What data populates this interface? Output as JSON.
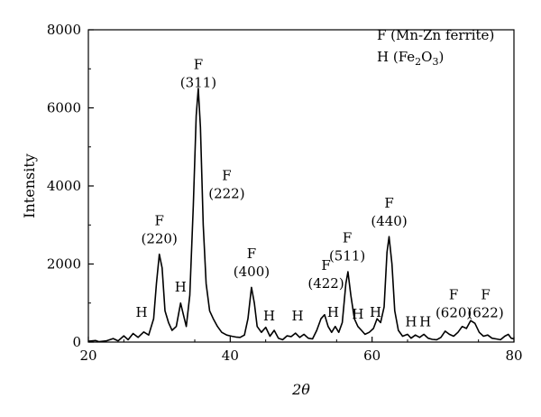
{
  "chart_data": {
    "type": "line",
    "title": "",
    "xlabel": "2θ",
    "ylabel": "Intensity",
    "xlim": [
      20,
      80
    ],
    "ylim": [
      0,
      8000
    ],
    "x_ticks": [
      "20",
      "40",
      "60",
      "80"
    ],
    "x_tick_values": [
      20,
      40,
      60,
      80
    ],
    "y_ticks": [
      "0",
      "2000",
      "4000",
      "6000",
      "8000"
    ],
    "y_tick_values": [
      0,
      2000,
      4000,
      6000,
      8000
    ],
    "grid": false,
    "legend_position": "top-right",
    "legend": {
      "line1": "F (Mn-Zn ferrite)",
      "line2_prefix": "H (Fe",
      "line2_sub1": "2",
      "line2_mid": "O",
      "line2_sub2": "3",
      "line2_suffix": ")"
    },
    "series": [
      {
        "color": "#000000",
        "points": [
          [
            20.0,
            20
          ],
          [
            21.0,
            40
          ],
          [
            21.5,
            10
          ],
          [
            22.5,
            30
          ],
          [
            23.5,
            90
          ],
          [
            24.2,
            30
          ],
          [
            25.0,
            160
          ],
          [
            25.6,
            60
          ],
          [
            26.3,
            220
          ],
          [
            27.0,
            120
          ],
          [
            27.8,
            260
          ],
          [
            28.5,
            180
          ],
          [
            29.2,
            600
          ],
          [
            29.6,
            1500
          ],
          [
            30.0,
            2250
          ],
          [
            30.4,
            1900
          ],
          [
            30.8,
            800
          ],
          [
            31.3,
            500
          ],
          [
            31.8,
            300
          ],
          [
            32.4,
            400
          ],
          [
            33.0,
            1000
          ],
          [
            33.4,
            700
          ],
          [
            33.8,
            400
          ],
          [
            34.3,
            1200
          ],
          [
            34.8,
            3500
          ],
          [
            35.2,
            5800
          ],
          [
            35.5,
            6500
          ],
          [
            35.8,
            5500
          ],
          [
            36.2,
            3000
          ],
          [
            36.6,
            1500
          ],
          [
            37.1,
            800
          ],
          [
            37.6,
            600
          ],
          [
            38.2,
            400
          ],
          [
            38.8,
            250
          ],
          [
            39.5,
            180
          ],
          [
            40.2,
            150
          ],
          [
            40.8,
            130
          ],
          [
            41.4,
            120
          ],
          [
            42.0,
            180
          ],
          [
            42.5,
            600
          ],
          [
            43.0,
            1400
          ],
          [
            43.4,
            1000
          ],
          [
            43.8,
            400
          ],
          [
            44.4,
            250
          ],
          [
            45.0,
            380
          ],
          [
            45.6,
            150
          ],
          [
            46.2,
            300
          ],
          [
            46.8,
            100
          ],
          [
            47.4,
            60
          ],
          [
            48.0,
            160
          ],
          [
            48.6,
            140
          ],
          [
            49.2,
            230
          ],
          [
            49.8,
            120
          ],
          [
            50.4,
            200
          ],
          [
            51.0,
            100
          ],
          [
            51.6,
            80
          ],
          [
            52.2,
            300
          ],
          [
            52.8,
            600
          ],
          [
            53.3,
            700
          ],
          [
            53.8,
            400
          ],
          [
            54.3,
            250
          ],
          [
            54.8,
            400
          ],
          [
            55.3,
            250
          ],
          [
            55.8,
            500
          ],
          [
            56.3,
            1500
          ],
          [
            56.6,
            1800
          ],
          [
            57.0,
            1200
          ],
          [
            57.5,
            600
          ],
          [
            58.0,
            400
          ],
          [
            58.5,
            300
          ],
          [
            59.0,
            200
          ],
          [
            59.6,
            250
          ],
          [
            60.2,
            350
          ],
          [
            60.7,
            600
          ],
          [
            61.2,
            500
          ],
          [
            61.7,
            900
          ],
          [
            62.1,
            2300
          ],
          [
            62.4,
            2700
          ],
          [
            62.8,
            2000
          ],
          [
            63.2,
            800
          ],
          [
            63.7,
            300
          ],
          [
            64.3,
            150
          ],
          [
            65.0,
            200
          ],
          [
            65.5,
            100
          ],
          [
            66.1,
            180
          ],
          [
            66.7,
            120
          ],
          [
            67.3,
            200
          ],
          [
            67.9,
            100
          ],
          [
            68.5,
            70
          ],
          [
            69.1,
            60
          ],
          [
            69.7,
            120
          ],
          [
            70.3,
            280
          ],
          [
            70.9,
            200
          ],
          [
            71.5,
            150
          ],
          [
            72.1,
            250
          ],
          [
            72.7,
            400
          ],
          [
            73.3,
            350
          ],
          [
            73.9,
            550
          ],
          [
            74.5,
            480
          ],
          [
            75.1,
            250
          ],
          [
            75.7,
            150
          ],
          [
            76.3,
            180
          ],
          [
            76.9,
            100
          ],
          [
            77.5,
            80
          ],
          [
            78.1,
            60
          ],
          [
            78.7,
            150
          ],
          [
            79.2,
            200
          ],
          [
            79.6,
            100
          ],
          [
            80.0,
            80
          ]
        ]
      }
    ],
    "annotations": [
      {
        "label": "H",
        "x": 27.5,
        "y": 650
      },
      {
        "label": "F",
        "label2": "(220)",
        "x": 30.0,
        "y": 3000
      },
      {
        "label": "H",
        "x": 33.0,
        "y": 1300
      },
      {
        "label": "F",
        "label2": "(311)",
        "x": 35.5,
        "y": 7000
      },
      {
        "label": "F",
        "label2": "(222)",
        "x": 39.5,
        "y": 4150
      },
      {
        "label": "F",
        "label2": "(400)",
        "x": 43.0,
        "y": 2150
      },
      {
        "label": "H",
        "x": 45.5,
        "y": 550
      },
      {
        "label": "H",
        "x": 49.5,
        "y": 550
      },
      {
        "label": "F",
        "label2": "(422)",
        "x": 53.5,
        "y": 1850
      },
      {
        "label": "H",
        "x": 54.5,
        "y": 650
      },
      {
        "label": "F",
        "label2": "(511)",
        "x": 56.5,
        "y": 2550
      },
      {
        "label": "H",
        "x": 58.0,
        "y": 600
      },
      {
        "label": "H",
        "x": 60.5,
        "y": 650
      },
      {
        "label": "F",
        "label2": "(440)",
        "x": 62.4,
        "y": 3450
      },
      {
        "label": "H",
        "x": 65.5,
        "y": 400
      },
      {
        "label": "H",
        "x": 67.5,
        "y": 400
      },
      {
        "label": "F",
        "label2": "(620)",
        "x": 71.5,
        "y": 1100
      },
      {
        "label": "F",
        "label2": "(622)",
        "x": 76.0,
        "y": 1100
      }
    ]
  }
}
